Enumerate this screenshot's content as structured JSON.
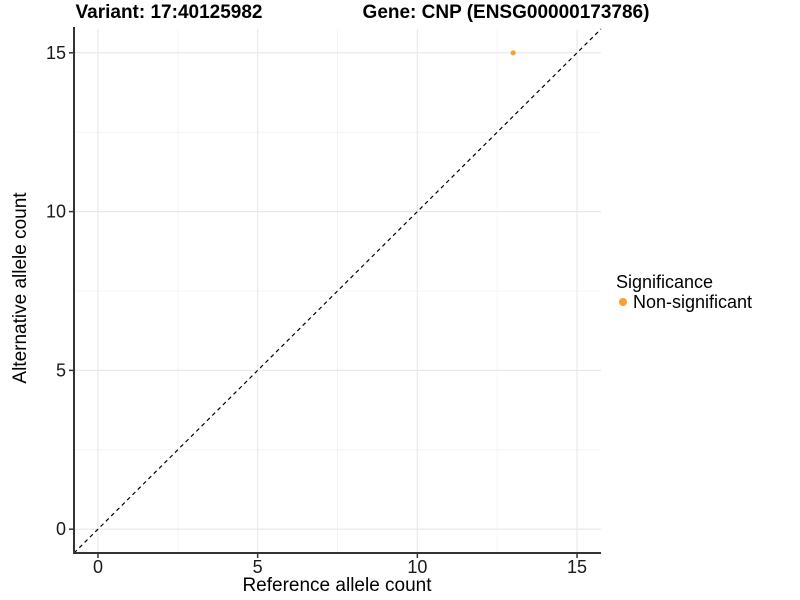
{
  "titles": {
    "variant": "Variant: 17:40125982",
    "gene": "Gene: CNP (ENSG00000173786)"
  },
  "legend": {
    "title": "Significance",
    "items": [
      {
        "label": "Non-significant",
        "color": "#F9A02D"
      }
    ]
  },
  "chart_data": {
    "type": "scatter",
    "title": "Variant: 17:40125982 / Gene: CNP (ENSG00000173786)",
    "xlabel": "Reference allele count",
    "ylabel": "Alternative allele count",
    "xlim": [
      -0.75,
      15.75
    ],
    "ylim": [
      -0.75,
      15.75
    ],
    "xticks": [
      0,
      5,
      10,
      15
    ],
    "yticks": [
      0,
      5,
      10,
      15
    ],
    "minor_ticks": [
      2.5,
      7.5,
      12.5
    ],
    "grid": true,
    "legend_position": "right",
    "series": [
      {
        "name": "Non-significant",
        "color": "#F9A02D",
        "points": [
          {
            "x": 13,
            "y": 15
          }
        ]
      }
    ],
    "reference_line": {
      "type": "identity",
      "style": "dashed",
      "color": "#000000",
      "from": [
        -0.75,
        -0.75
      ],
      "to": [
        15.75,
        15.75
      ]
    }
  },
  "colors": {
    "point": "#F9A02D",
    "axis": "#333333",
    "grid_major": "#E9E9E9",
    "grid_minor": "#F4F4F4",
    "tick_text": "#1A1A1A",
    "background": "#FFFFFF"
  }
}
